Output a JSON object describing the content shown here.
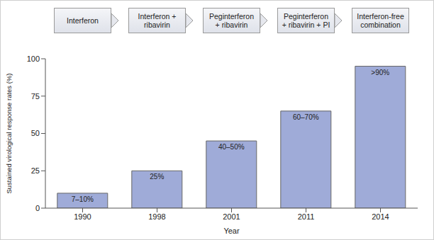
{
  "chart_data": {
    "type": "bar",
    "annotations": [
      "Interferon",
      "Interferon + ribavirin",
      "Peginterferon + ribavirin",
      "Peginterferon + ribavirin + PI",
      "Interferon-free combination"
    ],
    "categories": [
      "1990",
      "1998",
      "2001",
      "2011",
      "2014"
    ],
    "values": [
      10,
      25,
      45,
      65,
      95
    ],
    "value_labels": [
      "7–10%",
      "25%",
      "40–50%",
      "60–70%",
      ">90%"
    ],
    "data_labels": true,
    "color": "#9fabd8",
    "ylim": [
      0,
      100
    ],
    "yticks": [
      0,
      25,
      50,
      75,
      100
    ],
    "grid": false,
    "xlabel": "Year",
    "ylabel": "Sustained virological response rates (%)"
  }
}
